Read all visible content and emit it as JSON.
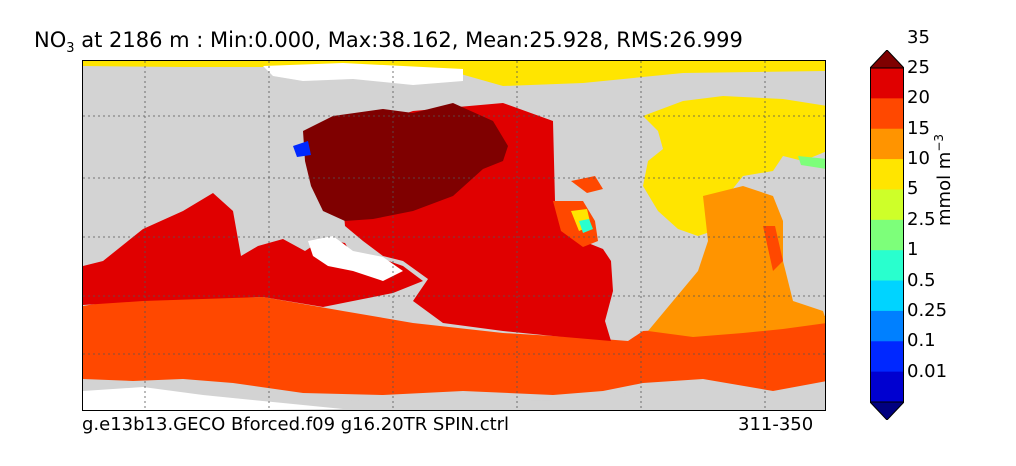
{
  "chart_data": {
    "type": "heatmap",
    "title_prefix": "NO",
    "title_subscript": "3",
    "title_rest": " at 2186 m : Min:0.000, Max:38.162, Mean:25.928, RMS:26.999",
    "stats": {
      "min": 0.0,
      "max": 38.162,
      "mean": 25.928,
      "rms": 26.999,
      "depth_m": 2186
    },
    "variable": "NO3",
    "colorbar": {
      "levels": [
        "0.01",
        "0.1",
        "0.25",
        "0.5",
        "1",
        "2.5",
        "5",
        "10",
        "15",
        "20",
        "25",
        "35"
      ],
      "colors": [
        "#00007f",
        "#0000d0",
        "#0028ff",
        "#0080ff",
        "#00d4ff",
        "#29ffce",
        "#7dff7a",
        "#ceff29",
        "#ffe500",
        "#ff9400",
        "#ff4800",
        "#e00000",
        "#7f0000"
      ],
      "units": "mmol m",
      "units_exp": "−3",
      "extend": "both"
    },
    "grid": true,
    "land_color": "#d3d3d3",
    "missing_color": "#ffffff",
    "footer_left": "g.e13b13.GECO Bforced.f09 g16.20TR SPIN.ctrl",
    "footer_right": "311-350"
  }
}
